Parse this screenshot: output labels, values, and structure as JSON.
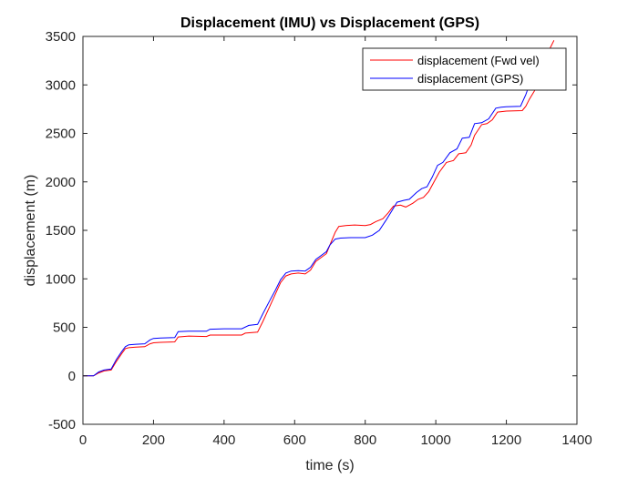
{
  "chart_data": {
    "type": "line",
    "title": "Displacement (IMU) vs Displacement (GPS)",
    "xlabel": "time (s)",
    "ylabel": "displacement (m)",
    "xlim": [
      0,
      1400
    ],
    "ylim": [
      -500,
      3500
    ],
    "xticks": [
      "0",
      "200",
      "400",
      "600",
      "800",
      "1000",
      "1200",
      "1400"
    ],
    "xtick_values": [
      0,
      200,
      400,
      600,
      800,
      1000,
      1200,
      1400
    ],
    "yticks": [
      "-500",
      "0",
      "500",
      "1000",
      "1500",
      "2000",
      "2500",
      "3000",
      "3500"
    ],
    "ytick_values": [
      -500,
      0,
      500,
      1000,
      1500,
      2000,
      2500,
      3000,
      3500
    ],
    "grid": false,
    "legend_position": "top-right",
    "series": [
      {
        "name": "displacement (Fwd vel)",
        "color": "#ff0000",
        "x": [
          0,
          30,
          45,
          60,
          80,
          95,
          110,
          120,
          130,
          150,
          175,
          190,
          200,
          220,
          260,
          270,
          300,
          350,
          360,
          400,
          450,
          460,
          495,
          510,
          530,
          545,
          560,
          575,
          590,
          610,
          630,
          645,
          660,
          690,
          700,
          715,
          725,
          745,
          770,
          800,
          815,
          830,
          850,
          865,
          880,
          900,
          915,
          935,
          950,
          965,
          980,
          995,
          1010,
          1030,
          1050,
          1065,
          1085,
          1100,
          1110,
          1130,
          1145,
          1160,
          1175,
          1200,
          1245,
          1255,
          1265,
          1280,
          1290,
          1300,
          1320,
          1335
        ],
        "y": [
          0,
          0,
          30,
          50,
          60,
          150,
          230,
          280,
          290,
          295,
          300,
          330,
          340,
          345,
          350,
          400,
          410,
          405,
          420,
          420,
          420,
          440,
          450,
          560,
          720,
          840,
          960,
          1030,
          1050,
          1060,
          1050,
          1090,
          1180,
          1260,
          1350,
          1480,
          1540,
          1550,
          1555,
          1550,
          1560,
          1590,
          1620,
          1680,
          1750,
          1760,
          1740,
          1780,
          1820,
          1840,
          1900,
          2000,
          2100,
          2200,
          2220,
          2290,
          2300,
          2380,
          2480,
          2590,
          2600,
          2640,
          2720,
          2730,
          2735,
          2780,
          2850,
          2940,
          3000,
          3150,
          3350,
          3460
        ]
      },
      {
        "name": "displacement (GPS)",
        "color": "#0000ff",
        "x": [
          0,
          30,
          45,
          60,
          80,
          95,
          110,
          120,
          130,
          150,
          175,
          190,
          200,
          220,
          260,
          270,
          300,
          350,
          360,
          400,
          450,
          470,
          495,
          510,
          530,
          545,
          560,
          575,
          590,
          610,
          630,
          645,
          660,
          690,
          700,
          715,
          730,
          760,
          790,
          800,
          820,
          840,
          860,
          875,
          890,
          910,
          925,
          945,
          960,
          975,
          990,
          1005,
          1020,
          1040,
          1060,
          1075,
          1095,
          1110,
          1130,
          1150,
          1170,
          1185,
          1200,
          1240,
          1255,
          1265
        ],
        "y": [
          0,
          0,
          40,
          60,
          70,
          170,
          250,
          300,
          320,
          325,
          330,
          370,
          385,
          390,
          395,
          455,
          460,
          460,
          480,
          485,
          485,
          520,
          530,
          640,
          780,
          880,
          990,
          1060,
          1080,
          1085,
          1080,
          1120,
          1200,
          1280,
          1350,
          1410,
          1420,
          1425,
          1425,
          1425,
          1450,
          1500,
          1610,
          1700,
          1790,
          1810,
          1820,
          1890,
          1930,
          1950,
          2050,
          2170,
          2200,
          2300,
          2340,
          2450,
          2460,
          2600,
          2610,
          2650,
          2760,
          2770,
          2775,
          2780,
          2900,
          3000
        ]
      }
    ]
  }
}
